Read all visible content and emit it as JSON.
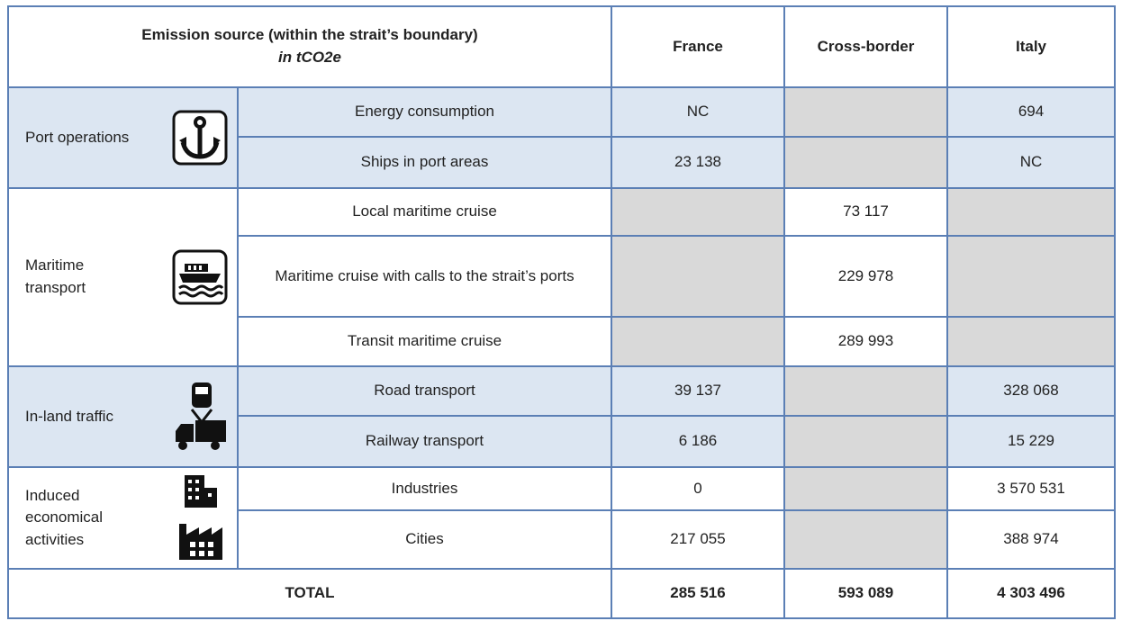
{
  "header": {
    "title": "Emission source (within the strait’s boundary)",
    "unit": "in tCO2e",
    "columns": [
      "France",
      "Cross-border",
      "Italy"
    ]
  },
  "groups": [
    {
      "label": "Port operations",
      "rows": [
        {
          "source": "Energy consumption",
          "values": [
            "NC",
            null,
            "694"
          ]
        },
        {
          "source": "Ships in port areas",
          "values": [
            "23 138",
            null,
            "NC"
          ]
        }
      ]
    },
    {
      "label": "Maritime transport",
      "rows": [
        {
          "source": "Local maritime cruise",
          "values": [
            null,
            "73 117",
            null
          ]
        },
        {
          "source": "Maritime cruise with calls to the strait’s ports",
          "values": [
            null,
            "229 978",
            null
          ]
        },
        {
          "source": "Transit maritime cruise",
          "values": [
            null,
            "289 993",
            null
          ]
        }
      ]
    },
    {
      "label": "In-land traffic",
      "rows": [
        {
          "source": "Road transport",
          "values": [
            "39 137",
            null,
            "328 068"
          ]
        },
        {
          "source": "Railway transport",
          "values": [
            "6 186",
            null,
            "15 229"
          ]
        }
      ]
    },
    {
      "label": "Induced economical activities",
      "rows": [
        {
          "source": "Industries",
          "values": [
            "0",
            null,
            "3 570 531"
          ]
        },
        {
          "source": "Cities",
          "values": [
            "217 055",
            null,
            "388 974"
          ]
        }
      ]
    }
  ],
  "total": {
    "label": "TOTAL",
    "values": [
      "285 516",
      "593 089",
      "4 303 496"
    ]
  }
}
